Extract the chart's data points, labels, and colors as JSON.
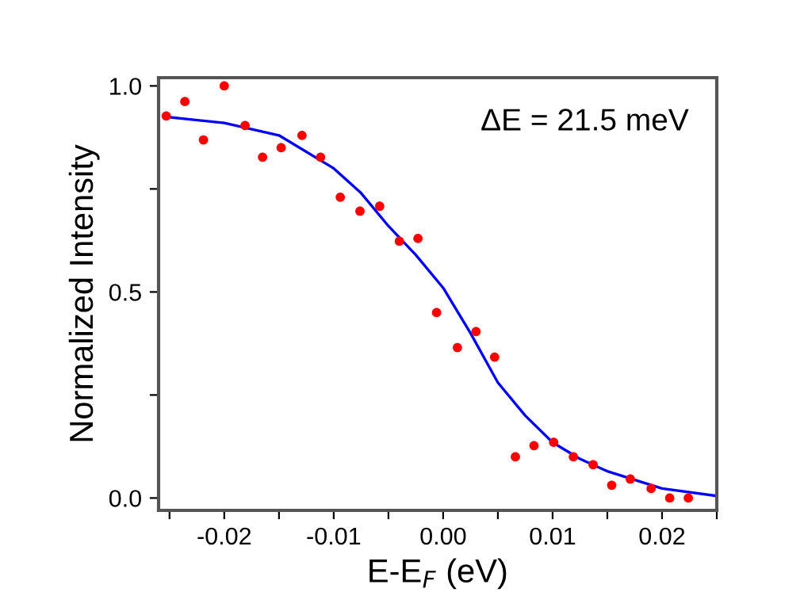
{
  "chart_data": {
    "type": "scatter",
    "xlabel": "E-E$_{F}$ (eV)",
    "ylabel": "Normalized Intensity",
    "annotations": [
      "ΔE = 21.5 meV"
    ],
    "xlim": [
      -0.026,
      0.025
    ],
    "ylim": [
      -0.03,
      1.02
    ],
    "xticks": [
      {
        "value": -0.025,
        "label": null
      },
      -0.02,
      {
        "value": -0.015,
        "label": null
      },
      -0.01,
      {
        "value": -0.005,
        "label": null
      },
      {
        "value": 0,
        "label": "0.00"
      },
      {
        "value": 0.005,
        "label": null
      },
      0.01,
      {
        "value": 0.015,
        "label": null
      },
      0.02,
      {
        "value": 0.025,
        "label": null
      }
    ],
    "yticks": [
      {
        "value": 0,
        "label": "0.0"
      },
      {
        "value": 0.25,
        "label": null
      },
      0.5,
      {
        "value": 0.75,
        "label": null
      },
      {
        "value": 1,
        "label": "1.0"
      }
    ],
    "series": [
      {
        "color": "#ff0000",
        "marker": "circle",
        "x": [
          -0.0253,
          -0.0236,
          -0.0219,
          -0.02,
          -0.0181,
          -0.0165,
          -0.0148,
          -0.0129,
          -0.0112,
          -0.0094,
          -0.0076,
          -0.0058,
          -0.004,
          -0.0023,
          -0.0006,
          0.0013,
          0.003,
          0.0047,
          0.0066,
          0.0083,
          0.0101,
          0.0119,
          0.0137,
          0.0154,
          0.0171,
          0.019,
          0.0207,
          0.0224
        ],
        "values": [
          0.927,
          0.962,
          0.869,
          1.0,
          0.904,
          0.827,
          0.85,
          0.88,
          0.827,
          0.73,
          0.696,
          0.708,
          0.623,
          0.63,
          0.45,
          0.365,
          0.404,
          0.342,
          0.1,
          0.127,
          0.135,
          0.1,
          0.081,
          0.031,
          0.046,
          0.023,
          0.0,
          0.0
        ]
      },
      {
        "type": "line",
        "color": "#0000ff",
        "marker": "none",
        "line_style": "solid",
        "x": [
          -0.0253,
          -0.02,
          -0.015,
          -0.01,
          -0.0075,
          -0.005,
          -0.0025,
          0,
          0.0025,
          0.005,
          0.0075,
          0.01,
          0.0125,
          0.015,
          0.02,
          0.025
        ],
        "values": [
          0.925,
          0.91,
          0.88,
          0.8,
          0.74,
          0.66,
          0.59,
          0.51,
          0.4,
          0.28,
          0.2,
          0.135,
          0.095,
          0.065,
          0.023,
          0.005
        ]
      }
    ]
  }
}
